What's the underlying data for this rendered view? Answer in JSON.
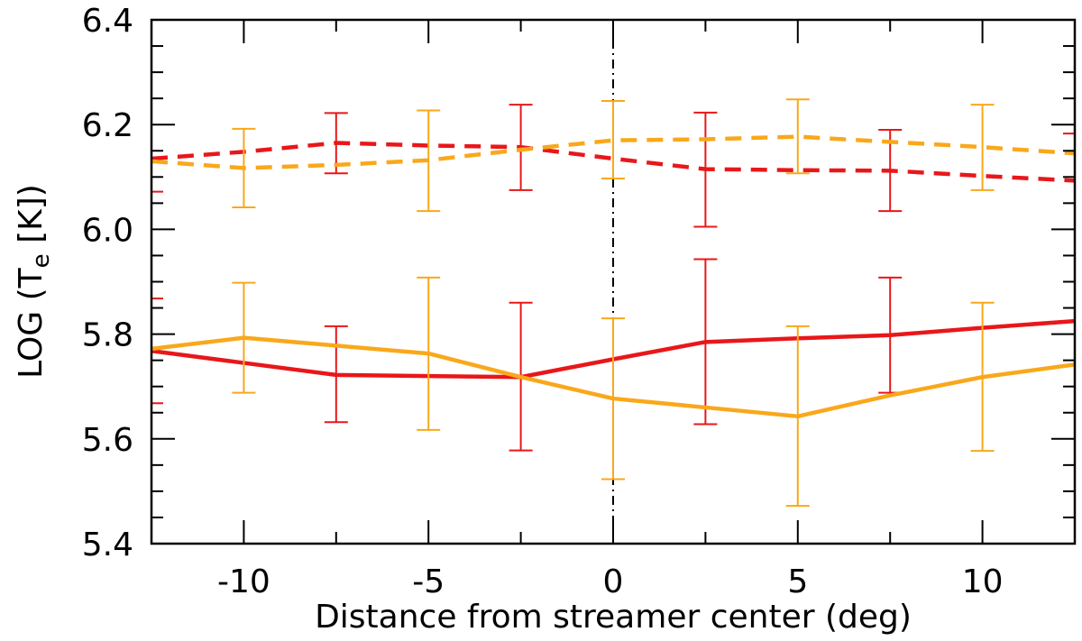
{
  "chart_data": {
    "type": "line",
    "xlabel": "Distance from streamer center (deg)",
    "ylabel": {
      "prefix": "LOG (T",
      "subscript": "e",
      "suffix": " [K])"
    },
    "xlim": [
      -12.5,
      12.5
    ],
    "ylim": [
      5.4,
      6.4
    ],
    "xticks": [
      -10,
      -5,
      0,
      5,
      10
    ],
    "xtick_labels": [
      "-10",
      "-5",
      "0",
      "5",
      "10"
    ],
    "yticks": [
      5.4,
      5.6,
      5.8,
      6.0,
      6.2,
      6.4
    ],
    "ytick_labels": [
      "5.4",
      "5.6",
      "5.8",
      "6.0",
      "6.2",
      "6.4"
    ],
    "x_minor_step": 2.5,
    "y_minor_step": 0.05,
    "reference_line": {
      "x": 0,
      "style": "dash-dot",
      "color": "#000000"
    },
    "colors": {
      "red": "#e8171a",
      "orange": "#f9a81b"
    },
    "x": [
      -12.5,
      -10,
      -7.5,
      -5,
      -2.5,
      0,
      2.5,
      5,
      7.5,
      10,
      12.5
    ],
    "series": [
      {
        "color_key": "red",
        "style": "dashed",
        "values": [
          6.135,
          6.148,
          6.165,
          6.16,
          6.157,
          6.135,
          6.115,
          6.113,
          6.112,
          6.102,
          6.093
        ],
        "err_low": [
          6.072,
          null,
          6.107,
          null,
          6.075,
          null,
          6.005,
          null,
          6.035,
          null,
          null
        ],
        "err_high": [
          null,
          null,
          6.222,
          null,
          6.238,
          null,
          6.223,
          null,
          6.19,
          null,
          6.183
        ]
      },
      {
        "color_key": "orange",
        "style": "dashed",
        "values": [
          6.13,
          6.117,
          6.123,
          6.132,
          6.152,
          6.17,
          6.172,
          6.177,
          6.167,
          6.157,
          6.145
        ],
        "err_low": [
          null,
          6.042,
          null,
          6.035,
          null,
          6.097,
          null,
          6.107,
          null,
          6.075,
          null
        ],
        "err_high": [
          null,
          6.192,
          null,
          6.227,
          null,
          6.245,
          null,
          6.248,
          null,
          6.238,
          null
        ]
      },
      {
        "color_key": "red",
        "style": "solid",
        "values": [
          5.768,
          5.745,
          5.722,
          5.72,
          5.718,
          5.752,
          5.785,
          5.792,
          5.798,
          5.812,
          5.825
        ],
        "err_low": [
          5.668,
          null,
          5.632,
          null,
          5.578,
          null,
          5.628,
          null,
          5.688,
          null,
          null
        ],
        "err_high": [
          5.868,
          null,
          5.815,
          null,
          5.86,
          null,
          5.943,
          null,
          5.908,
          null,
          null
        ]
      },
      {
        "color_key": "orange",
        "style": "solid",
        "values": [
          5.772,
          5.793,
          5.778,
          5.763,
          5.718,
          5.677,
          5.66,
          5.643,
          5.683,
          5.718,
          5.742
        ],
        "err_low": [
          null,
          5.688,
          null,
          5.617,
          null,
          5.523,
          null,
          5.472,
          null,
          5.577,
          null
        ],
        "err_high": [
          null,
          5.898,
          null,
          5.908,
          null,
          5.83,
          null,
          5.815,
          null,
          5.86,
          null
        ]
      }
    ]
  }
}
